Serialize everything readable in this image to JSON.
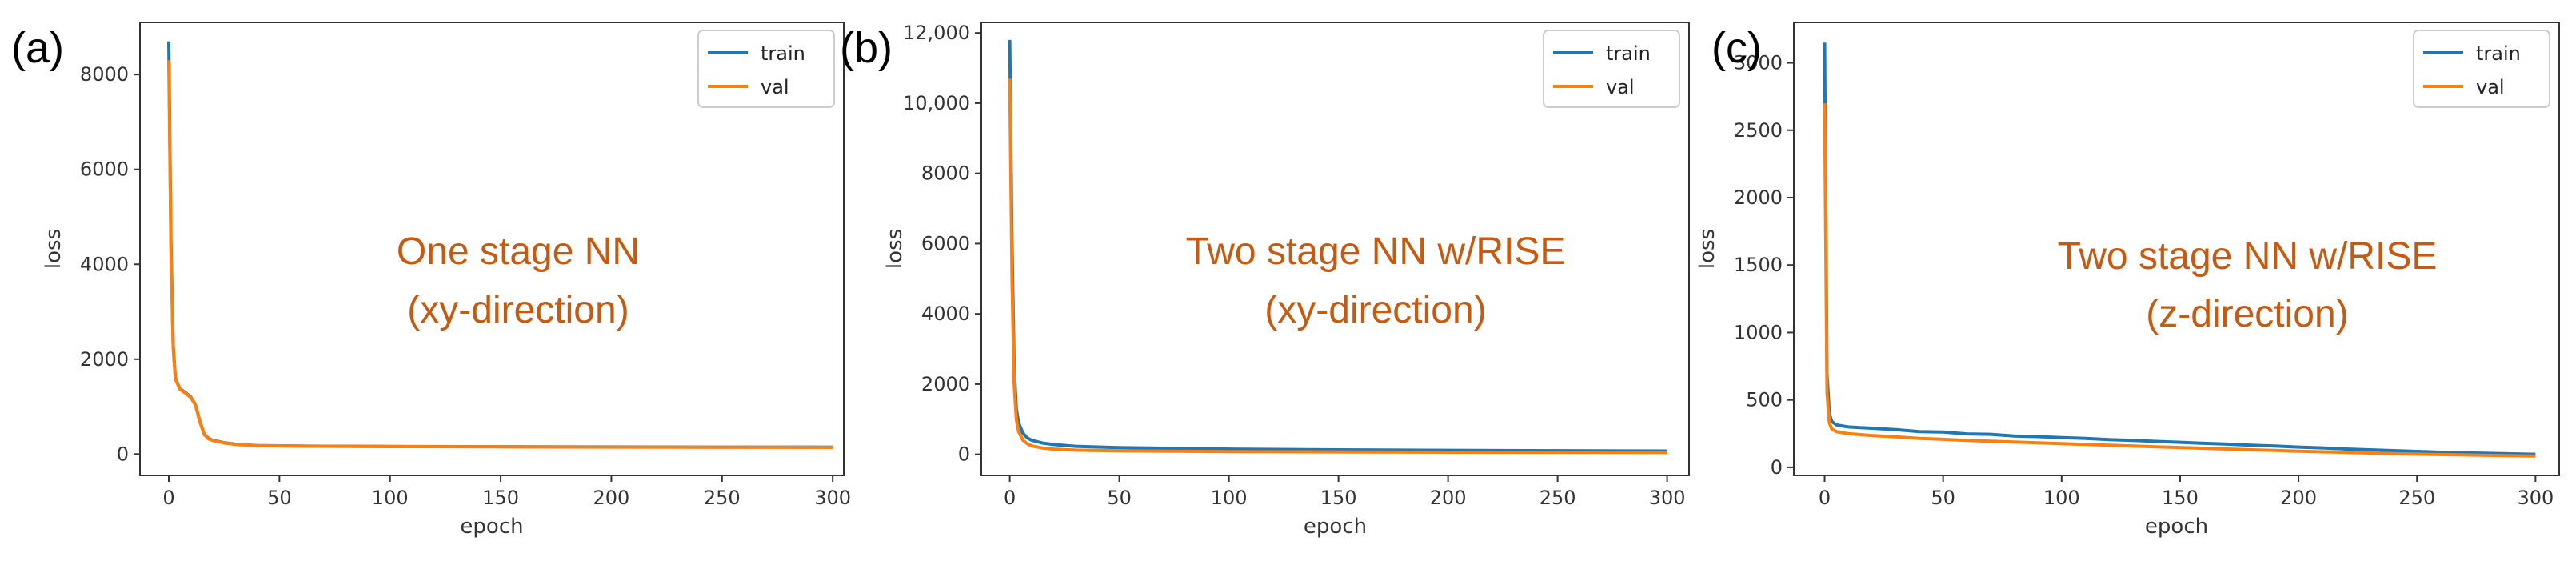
{
  "colors": {
    "train": "#1f77b4",
    "val": "#ff7f0e",
    "annotation": "#c55a11"
  },
  "chart_data": [
    {
      "type": "line",
      "panel_label": "(a)",
      "xlabel": "epoch",
      "ylabel": "loss",
      "xlim": [
        -13,
        305
      ],
      "ylim": [
        -450,
        9100
      ],
      "xticks": [
        0,
        50,
        100,
        150,
        200,
        250,
        300
      ],
      "xtick_labels": [
        "0",
        "50",
        "100",
        "150",
        "200",
        "250",
        "300"
      ],
      "yticks": [
        0,
        2000,
        4000,
        6000,
        8000
      ],
      "ytick_labels": [
        "0",
        "2000",
        "4000",
        "6000",
        "8000"
      ],
      "legend": {
        "position": "top-right",
        "entries": [
          "train",
          "val"
        ]
      },
      "annotation": [
        "One stage NN",
        "(xy-direction)"
      ],
      "series": [
        {
          "name": "train",
          "color": "#1f77b4",
          "x": [
            0,
            1,
            2,
            3,
            5,
            8,
            10,
            12,
            14,
            16,
            18,
            20,
            25,
            30,
            40,
            60,
            100,
            150,
            200,
            250,
            300
          ],
          "y": [
            8700,
            4500,
            2300,
            1600,
            1380,
            1280,
            1200,
            1050,
            700,
            420,
            330,
            290,
            240,
            210,
            180,
            170,
            160,
            155,
            150,
            148,
            145
          ]
        },
        {
          "name": "val",
          "color": "#ff7f0e",
          "x": [
            0,
            1,
            2,
            3,
            5,
            8,
            10,
            12,
            14,
            16,
            18,
            20,
            25,
            30,
            40,
            60,
            100,
            150,
            200,
            250,
            300
          ],
          "y": [
            8300,
            4300,
            2250,
            1580,
            1370,
            1270,
            1190,
            1040,
            690,
            410,
            320,
            285,
            235,
            205,
            178,
            168,
            158,
            153,
            148,
            146,
            143
          ]
        }
      ]
    },
    {
      "type": "line",
      "panel_label": "(b)",
      "xlabel": "epoch",
      "ylabel": "loss",
      "xlim": [
        -13,
        310
      ],
      "ylim": [
        -600,
        12300
      ],
      "xticks": [
        0,
        50,
        100,
        150,
        200,
        250,
        300
      ],
      "xtick_labels": [
        "0",
        "50",
        "100",
        "150",
        "200",
        "250",
        "300"
      ],
      "yticks": [
        0,
        2000,
        4000,
        6000,
        8000,
        10000,
        12000
      ],
      "ytick_labels": [
        "0",
        "2000",
        "4000",
        "6000",
        "8000",
        "10,000",
        "12,000"
      ],
      "legend": {
        "position": "top-right",
        "entries": [
          "train",
          "val"
        ]
      },
      "annotation": [
        "Two stage NN w/RISE",
        "(xy-direction)"
      ],
      "series": [
        {
          "name": "train",
          "color": "#1f77b4",
          "x": [
            0,
            1,
            2,
            3,
            4,
            6,
            8,
            10,
            15,
            20,
            30,
            50,
            100,
            150,
            200,
            250,
            300
          ],
          "y": [
            11800,
            6000,
            2500,
            1300,
            900,
            600,
            470,
            400,
            320,
            280,
            230,
            190,
            150,
            130,
            115,
            105,
            95
          ]
        },
        {
          "name": "val",
          "color": "#ff7f0e",
          "x": [
            0,
            1,
            2,
            3,
            4,
            6,
            8,
            10,
            15,
            20,
            30,
            50,
            100,
            150,
            200,
            250,
            300
          ],
          "y": [
            10700,
            5000,
            2000,
            1000,
            650,
            400,
            300,
            240,
            180,
            150,
            120,
            100,
            80,
            70,
            62,
            58,
            55
          ]
        }
      ]
    },
    {
      "type": "line",
      "panel_label": "(c)",
      "xlabel": "epoch",
      "ylabel": "loss",
      "xlim": [
        -13,
        310
      ],
      "ylim": [
        -60,
        3300
      ],
      "xticks": [
        0,
        50,
        100,
        150,
        200,
        250,
        300
      ],
      "xtick_labels": [
        "0",
        "50",
        "100",
        "150",
        "200",
        "250",
        "300"
      ],
      "yticks": [
        0,
        500,
        1000,
        1500,
        2000,
        2500,
        3000
      ],
      "ytick_labels": [
        "0",
        "500",
        "1000",
        "1500",
        "2000",
        "2500",
        "3000"
      ],
      "legend": {
        "position": "top-right",
        "entries": [
          "train",
          "val"
        ]
      },
      "annotation": [
        "Two stage NN w/RISE",
        "(z-direction)"
      ],
      "series": [
        {
          "name": "train",
          "color": "#1f77b4",
          "x": [
            0,
            1,
            2,
            3,
            5,
            8,
            10,
            15,
            20,
            30,
            40,
            50,
            60,
            70,
            80,
            90,
            100,
            110,
            120,
            130,
            140,
            150,
            160,
            170,
            180,
            190,
            200,
            210,
            220,
            230,
            240,
            250,
            260,
            270,
            280,
            290,
            300
          ],
          "y": [
            3150,
            700,
            400,
            340,
            315,
            305,
            300,
            295,
            290,
            280,
            265,
            262,
            248,
            245,
            232,
            228,
            220,
            214,
            206,
            200,
            192,
            186,
            178,
            172,
            164,
            158,
            150,
            144,
            136,
            130,
            124,
            118,
            112,
            108,
            104,
            100,
            97
          ]
        },
        {
          "name": "val",
          "color": "#ff7f0e",
          "x": [
            0,
            1,
            2,
            3,
            5,
            8,
            10,
            15,
            20,
            30,
            40,
            50,
            60,
            70,
            80,
            90,
            100,
            110,
            120,
            130,
            140,
            150,
            160,
            170,
            180,
            190,
            200,
            210,
            220,
            230,
            240,
            250,
            260,
            270,
            280,
            290,
            300
          ],
          "y": [
            2700,
            550,
            330,
            285,
            265,
            255,
            250,
            243,
            236,
            226,
            215,
            208,
            200,
            194,
            188,
            182,
            176,
            170,
            164,
            158,
            152,
            147,
            141,
            136,
            130,
            125,
            120,
            115,
            111,
            106,
            102,
            98,
            95,
            92,
            89,
            86,
            84
          ]
        }
      ]
    }
  ]
}
